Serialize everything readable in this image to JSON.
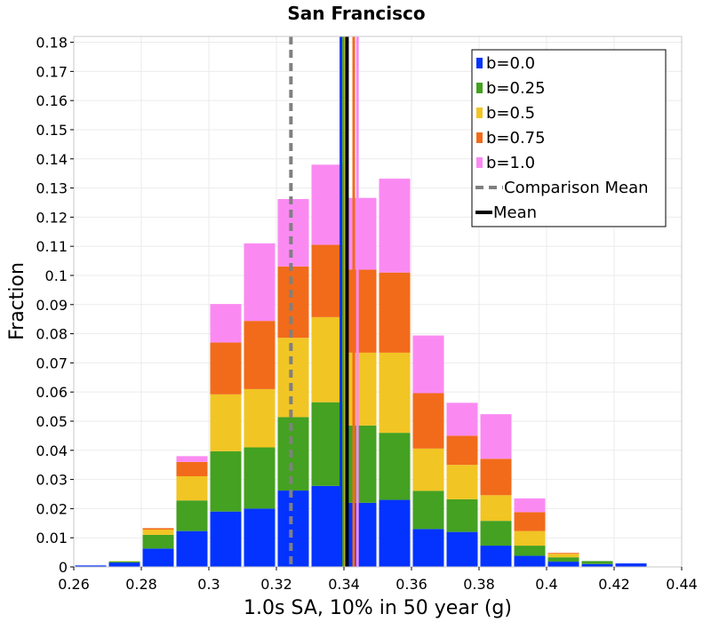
{
  "chart_data": {
    "type": "bar",
    "stacked": true,
    "title": "San Francisco",
    "xlabel": "1.0s SA, 10% in 50 year (g)",
    "ylabel": "Fraction",
    "xlim": [
      0.26,
      0.44
    ],
    "ylim": [
      0,
      0.182
    ],
    "x_ticks": [
      "0.26",
      "0.28",
      "0.3",
      "0.32",
      "0.34",
      "0.36",
      "0.38",
      "0.4",
      "0.42",
      "0.44"
    ],
    "y_ticks": [
      "0",
      "0.01",
      "0.02",
      "0.03",
      "0.04",
      "0.05",
      "0.06",
      "0.07",
      "0.08",
      "0.09",
      "0.1",
      "0.11",
      "0.12",
      "0.13",
      "0.14",
      "0.15",
      "0.16",
      "0.17",
      "0.18"
    ],
    "bin_width": 0.01,
    "bin_starts": [
      0.26,
      0.27,
      0.28,
      0.29,
      0.3,
      0.31,
      0.32,
      0.33,
      0.34,
      0.35,
      0.36,
      0.37,
      0.38,
      0.39,
      0.4,
      0.41,
      0.42
    ],
    "series": [
      {
        "name": "b=0.0",
        "color": "#0433ff",
        "values": [
          0.0005,
          0.0015,
          0.0063,
          0.0123,
          0.019,
          0.02,
          0.0262,
          0.0278,
          0.022,
          0.023,
          0.013,
          0.012,
          0.0073,
          0.0038,
          0.0018,
          0.001,
          0.0012
        ]
      },
      {
        "name": "b=0.25",
        "color": "#44a121",
        "values": [
          0,
          0.0004,
          0.0047,
          0.0105,
          0.0207,
          0.021,
          0.0252,
          0.0287,
          0.0265,
          0.023,
          0.0131,
          0.0112,
          0.0085,
          0.0035,
          0.0015,
          0.001,
          0
        ]
      },
      {
        "name": "b=0.5",
        "color": "#f1c524",
        "values": [
          0,
          0.0001,
          0.0018,
          0.0083,
          0.0195,
          0.02,
          0.0272,
          0.0292,
          0.025,
          0.0275,
          0.0145,
          0.0118,
          0.0088,
          0.005,
          0.0012,
          0,
          0
        ]
      },
      {
        "name": "b=0.75",
        "color": "#f26b1a",
        "values": [
          0,
          0,
          0.0005,
          0.0049,
          0.0178,
          0.0234,
          0.0245,
          0.0248,
          0.0285,
          0.0275,
          0.019,
          0.01,
          0.0125,
          0.0065,
          0.0003,
          0,
          0
        ]
      },
      {
        "name": "b=1.0",
        "color": "#fa8af2",
        "values": [
          0,
          0,
          0,
          0.002,
          0.0132,
          0.0266,
          0.0231,
          0.0275,
          0.0246,
          0.0322,
          0.0198,
          0.0113,
          0.0153,
          0.0047,
          0,
          0,
          0
        ]
      }
    ],
    "reference_lines": [
      {
        "name": "b=0.0 mean",
        "color": "#0433ff",
        "style": "solid",
        "x": 0.3391
      },
      {
        "name": "b=0.25 mean",
        "color": "#44a121",
        "style": "solid",
        "x": 0.3399
      },
      {
        "name": "b=0.5 mean",
        "color": "#f1c524",
        "style": "solid",
        "x": 0.3405
      },
      {
        "name": "b=0.75 mean",
        "color": "#f26b1a",
        "style": "solid",
        "x": 0.3429
      },
      {
        "name": "b=1.0 mean",
        "color": "#fa8af2",
        "style": "solid",
        "x": 0.344
      },
      {
        "name": "Comparison Mean",
        "color": "#808080",
        "style": "dashed",
        "x": 0.3243
      },
      {
        "name": "Mean",
        "color": "#000000",
        "style": "solid",
        "x": 0.3409
      }
    ],
    "legend": {
      "position": "top-right",
      "entries": [
        {
          "label": "b=0.0",
          "kind": "swatch",
          "color": "#0433ff"
        },
        {
          "label": "b=0.25",
          "kind": "swatch",
          "color": "#44a121"
        },
        {
          "label": "b=0.5",
          "kind": "swatch",
          "color": "#f1c524"
        },
        {
          "label": "b=0.75",
          "kind": "swatch",
          "color": "#f26b1a"
        },
        {
          "label": "b=1.0",
          "kind": "swatch",
          "color": "#fa8af2"
        },
        {
          "label": "Comparison Mean",
          "kind": "dashed",
          "color": "#808080"
        },
        {
          "label": "Mean",
          "kind": "line",
          "color": "#000000"
        }
      ]
    }
  }
}
